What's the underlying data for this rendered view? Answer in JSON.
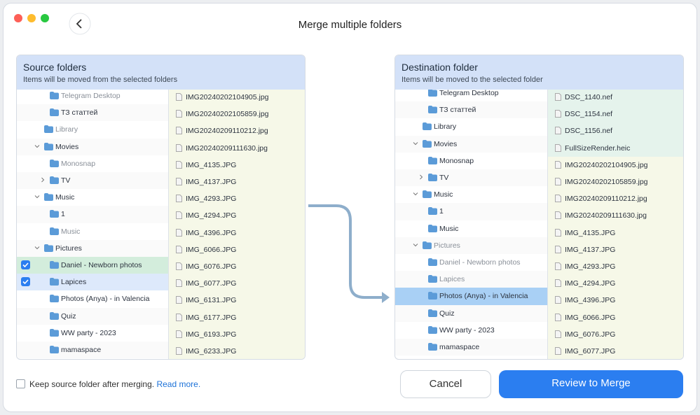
{
  "window": {
    "title": "Merge multiple folders"
  },
  "source": {
    "title": "Source folders",
    "subtitle": "Items will be moved from the selected folders",
    "tree": [
      "Telegram Desktop",
      "ТЗ статтей",
      "Library",
      "Movies",
      "Monosnap",
      "TV",
      "Music",
      "1",
      "Music",
      "Pictures",
      "Daniel - Newborn photos",
      "Lapices",
      "Photos (Anya) - in Valencia",
      "Quiz",
      "WW party - 2023",
      "mamaspace"
    ],
    "files": [
      "IMG20240202104905.jpg",
      "IMG20240202105859.jpg",
      "IMG20240209110212.jpg",
      "IMG20240209111630.jpg",
      "IMG_4135.JPG",
      "IMG_4137.JPG",
      "IMG_4293.JPG",
      "IMG_4294.JPG",
      "IMG_4396.JPG",
      "IMG_6066.JPG",
      "IMG_6076.JPG",
      "IMG_6077.JPG",
      "IMG_6131.JPG",
      "IMG_6177.JPG",
      "IMG_6193.JPG",
      "IMG_6233.JPG"
    ]
  },
  "destination": {
    "title": "Destination folder",
    "subtitle": "Items will be moved to the selected folder",
    "tree": [
      "Telegram Desktop",
      "ТЗ статтей",
      "Library",
      "Movies",
      "Monosnap",
      "TV",
      "Music",
      "1",
      "Music",
      "Pictures",
      "Daniel - Newborn photos",
      "Lapices",
      "Photos (Anya) - in Valencia",
      "Quiz",
      "WW party - 2023",
      "mamaspace"
    ],
    "files": [
      "DSC_1140.nef",
      "DSC_1154.nef",
      "DSC_1156.nef",
      "FullSizeRender.heic",
      "IMG20240202104905.jpg",
      "IMG20240202105859.jpg",
      "IMG20240209110212.jpg",
      "IMG20240209111630.jpg",
      "IMG_4135.JPG",
      "IMG_4137.JPG",
      "IMG_4293.JPG",
      "IMG_4294.JPG",
      "IMG_4396.JPG",
      "IMG_6066.JPG",
      "IMG_6076.JPG",
      "IMG_6077.JPG"
    ]
  },
  "footer": {
    "checkbox_label": "Keep source folder after merging.",
    "link": "Read more.",
    "cancel": "Cancel",
    "confirm": "Review to Merge"
  }
}
